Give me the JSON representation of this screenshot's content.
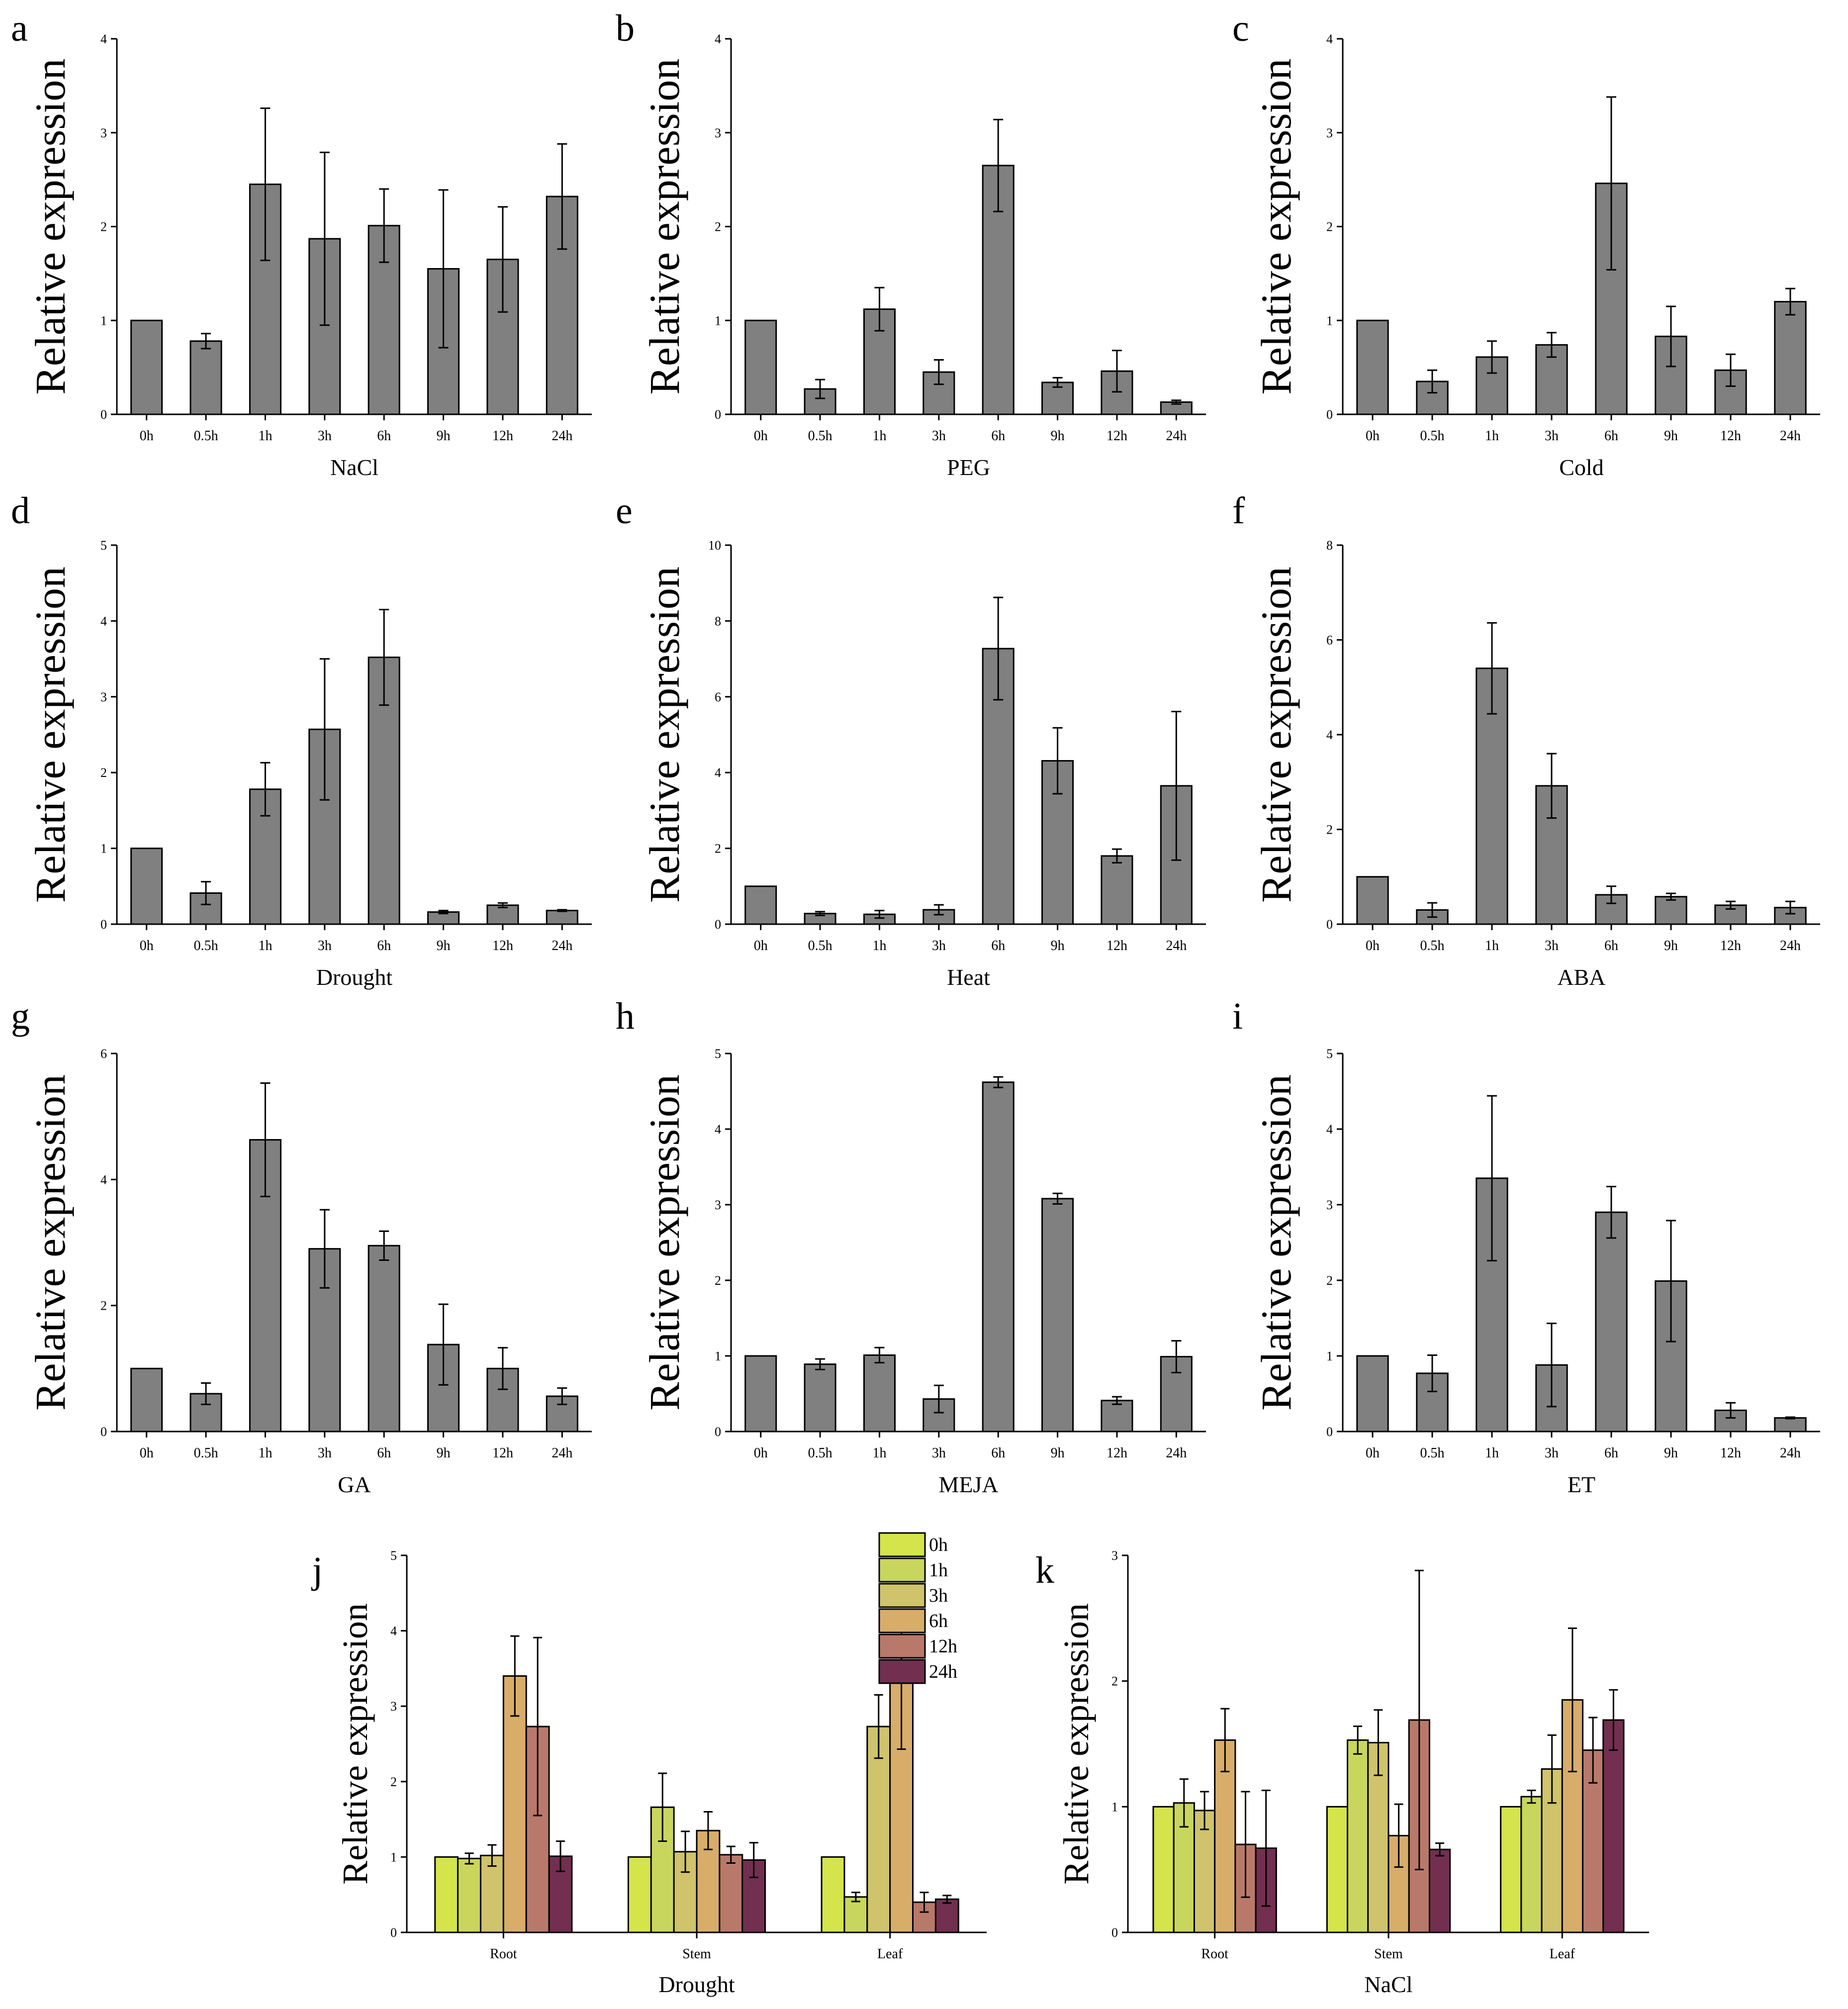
{
  "chart_data": [
    {
      "id": "a",
      "type": "bar",
      "title": "",
      "panel_label": "a",
      "xlabel": "NaCl",
      "ylabel": "Relative expression",
      "categories": [
        "0h",
        "0.5h",
        "1h",
        "3h",
        "6h",
        "9h",
        "12h",
        "24h"
      ],
      "values": [
        1.0,
        0.78,
        2.45,
        1.87,
        2.01,
        1.55,
        1.65,
        2.32
      ],
      "errors": [
        0,
        0.08,
        0.81,
        0.92,
        0.39,
        0.84,
        0.56,
        0.56
      ],
      "ylim": [
        0,
        4
      ],
      "yticks": [
        0,
        1,
        2,
        3,
        4
      ],
      "color": "#808080"
    },
    {
      "id": "b",
      "type": "bar",
      "title": "",
      "panel_label": "b",
      "xlabel": "PEG",
      "ylabel": "Relative expression",
      "categories": [
        "0h",
        "0.5h",
        "1h",
        "3h",
        "6h",
        "9h",
        "12h",
        "24h"
      ],
      "values": [
        1.0,
        0.27,
        1.12,
        0.45,
        2.65,
        0.34,
        0.46,
        0.13
      ],
      "errors": [
        0,
        0.1,
        0.23,
        0.13,
        0.49,
        0.05,
        0.22,
        0.02
      ],
      "ylim": [
        0,
        4
      ],
      "yticks": [
        0,
        1,
        2,
        3,
        4
      ],
      "color": "#808080"
    },
    {
      "id": "c",
      "type": "bar",
      "title": "",
      "panel_label": "c",
      "xlabel": "Cold",
      "ylabel": "Relative expression",
      "categories": [
        "0h",
        "0.5h",
        "1h",
        "3h",
        "6h",
        "9h",
        "12h",
        "24h"
      ],
      "values": [
        1.0,
        0.35,
        0.61,
        0.74,
        2.46,
        0.83,
        0.47,
        1.2
      ],
      "errors": [
        0,
        0.12,
        0.17,
        0.13,
        0.92,
        0.32,
        0.17,
        0.14
      ],
      "ylim": [
        0,
        4
      ],
      "yticks": [
        0,
        1,
        2,
        3,
        4
      ],
      "color": "#808080"
    },
    {
      "id": "d",
      "type": "bar",
      "title": "",
      "panel_label": "d",
      "xlabel": "Drought",
      "ylabel": "Relative expression",
      "categories": [
        "0h",
        "0.5h",
        "1h",
        "3h",
        "6h",
        "9h",
        "12h",
        "24h"
      ],
      "values": [
        1.0,
        0.41,
        1.78,
        2.57,
        3.52,
        0.16,
        0.25,
        0.18
      ],
      "errors": [
        0,
        0.15,
        0.35,
        0.93,
        0.63,
        0.02,
        0.03,
        0.01
      ],
      "ylim": [
        0,
        5
      ],
      "yticks": [
        0,
        1,
        2,
        3,
        4,
        5
      ],
      "color": "#808080"
    },
    {
      "id": "e",
      "type": "bar",
      "title": "",
      "panel_label": "e",
      "xlabel": "Heat",
      "ylabel": "Relative expression",
      "categories": [
        "0h",
        "0.5h",
        "1h",
        "3h",
        "6h",
        "9h",
        "12h",
        "24h"
      ],
      "values": [
        1.0,
        0.28,
        0.26,
        0.38,
        7.27,
        4.31,
        1.8,
        3.65
      ],
      "errors": [
        0,
        0.05,
        0.1,
        0.13,
        1.35,
        0.87,
        0.18,
        1.96
      ],
      "ylim": [
        0,
        10
      ],
      "yticks": [
        0,
        2,
        4,
        6,
        8,
        10
      ],
      "color": "#808080"
    },
    {
      "id": "f",
      "type": "bar",
      "title": "",
      "panel_label": "f",
      "xlabel": "ABA",
      "ylabel": "Relative expression",
      "categories": [
        "0h",
        "0.5h",
        "1h",
        "3h",
        "6h",
        "9h",
        "12h",
        "24h"
      ],
      "values": [
        1.0,
        0.3,
        5.4,
        2.92,
        0.62,
        0.58,
        0.4,
        0.35
      ],
      "errors": [
        0,
        0.15,
        0.96,
        0.68,
        0.18,
        0.07,
        0.08,
        0.13
      ],
      "ylim": [
        0,
        8
      ],
      "yticks": [
        0,
        2,
        4,
        6,
        8
      ],
      "color": "#808080"
    },
    {
      "id": "g",
      "type": "bar",
      "title": "",
      "panel_label": "g",
      "xlabel": "GA",
      "ylabel": "Relative expression",
      "categories": [
        "0h",
        "0.5h",
        "1h",
        "3h",
        "6h",
        "9h",
        "12h",
        "24h"
      ],
      "values": [
        1.0,
        0.6,
        4.63,
        2.9,
        2.95,
        1.38,
        1.0,
        0.56
      ],
      "errors": [
        0,
        0.17,
        0.9,
        0.62,
        0.23,
        0.64,
        0.33,
        0.13
      ],
      "ylim": [
        0,
        6
      ],
      "yticks": [
        0,
        2,
        4,
        6
      ],
      "color": "#808080"
    },
    {
      "id": "h",
      "type": "bar",
      "title": "",
      "panel_label": "h",
      "xlabel": "MEJA",
      "ylabel": "Relative expression",
      "categories": [
        "0h",
        "0.5h",
        "1h",
        "3h",
        "6h",
        "9h",
        "12h",
        "24h"
      ],
      "values": [
        1.0,
        0.89,
        1.01,
        0.43,
        4.62,
        3.08,
        0.41,
        0.99
      ],
      "errors": [
        0,
        0.07,
        0.1,
        0.18,
        0.07,
        0.07,
        0.05,
        0.21
      ],
      "ylim": [
        0,
        5
      ],
      "yticks": [
        0,
        1,
        2,
        3,
        4,
        5
      ],
      "color": "#808080"
    },
    {
      "id": "i",
      "type": "bar",
      "title": "",
      "panel_label": "i",
      "xlabel": "ET",
      "ylabel": "Relative expression",
      "categories": [
        "0h",
        "0.5h",
        "1h",
        "3h",
        "6h",
        "9h",
        "12h",
        "24h"
      ],
      "values": [
        1.0,
        0.77,
        3.35,
        0.88,
        2.9,
        1.99,
        0.28,
        0.18
      ],
      "errors": [
        0,
        0.24,
        1.09,
        0.55,
        0.34,
        0.8,
        0.1,
        0.01
      ],
      "ylim": [
        0,
        5
      ],
      "yticks": [
        0,
        1,
        2,
        3,
        4,
        5
      ],
      "color": "#808080"
    },
    {
      "id": "j",
      "type": "bar",
      "title": "",
      "panel_label": "j",
      "xlabel": "Drought",
      "ylabel": "Relative expression",
      "categories": [
        "Root",
        "Stem",
        "Leaf"
      ],
      "ylim": [
        0,
        5
      ],
      "yticks": [
        0,
        1,
        2,
        3,
        4,
        5
      ],
      "legend": {
        "position": "top-right"
      },
      "series": [
        {
          "name": "0h",
          "color": "#d4e44a",
          "values": [
            1.0,
            1.0,
            1.0
          ],
          "errors": [
            0,
            0,
            0
          ]
        },
        {
          "name": "1h",
          "color": "#c9d65e",
          "values": [
            0.98,
            1.66,
            0.47
          ],
          "errors": [
            0.07,
            0.45,
            0.06
          ]
        },
        {
          "name": "3h",
          "color": "#cfc36c",
          "values": [
            1.02,
            1.07,
            2.73
          ],
          "errors": [
            0.14,
            0.27,
            0.42
          ]
        },
        {
          "name": "6h",
          "color": "#d8ad6a",
          "values": [
            3.4,
            1.35,
            3.31
          ],
          "errors": [
            0.53,
            0.25,
            0.88
          ]
        },
        {
          "name": "12h",
          "color": "#b9796a",
          "values": [
            2.73,
            1.03,
            0.4
          ],
          "errors": [
            1.18,
            0.11,
            0.13
          ]
        },
        {
          "name": "24h",
          "color": "#722f50",
          "values": [
            1.01,
            0.96,
            0.44
          ],
          "errors": [
            0.2,
            0.23,
            0.05
          ]
        }
      ]
    },
    {
      "id": "k",
      "type": "bar",
      "title": "",
      "panel_label": "k",
      "xlabel": "NaCl",
      "ylabel": "Relative expression",
      "categories": [
        "Root",
        "Stem",
        "Leaf"
      ],
      "ylim": [
        0,
        3
      ],
      "yticks": [
        0,
        1,
        2,
        3
      ],
      "series": [
        {
          "name": "0h",
          "color": "#d4e44a",
          "values": [
            1.0,
            1.0,
            1.0
          ],
          "errors": [
            0,
            0,
            0
          ]
        },
        {
          "name": "1h",
          "color": "#c9d65e",
          "values": [
            1.03,
            1.53,
            1.08
          ],
          "errors": [
            0.19,
            0.11,
            0.05
          ]
        },
        {
          "name": "3h",
          "color": "#cfc36c",
          "values": [
            0.97,
            1.51,
            1.3
          ],
          "errors": [
            0.15,
            0.26,
            0.27
          ]
        },
        {
          "name": "6h",
          "color": "#d8ad6a",
          "values": [
            1.53,
            0.77,
            1.85
          ],
          "errors": [
            0.25,
            0.25,
            0.57
          ]
        },
        {
          "name": "12h",
          "color": "#b9796a",
          "values": [
            0.7,
            1.69,
            1.45
          ],
          "errors": [
            0.42,
            1.19,
            0.26
          ]
        },
        {
          "name": "24h",
          "color": "#722f50",
          "values": [
            0.67,
            0.66,
            1.69
          ],
          "errors": [
            0.46,
            0.05,
            0.24
          ]
        }
      ]
    }
  ]
}
